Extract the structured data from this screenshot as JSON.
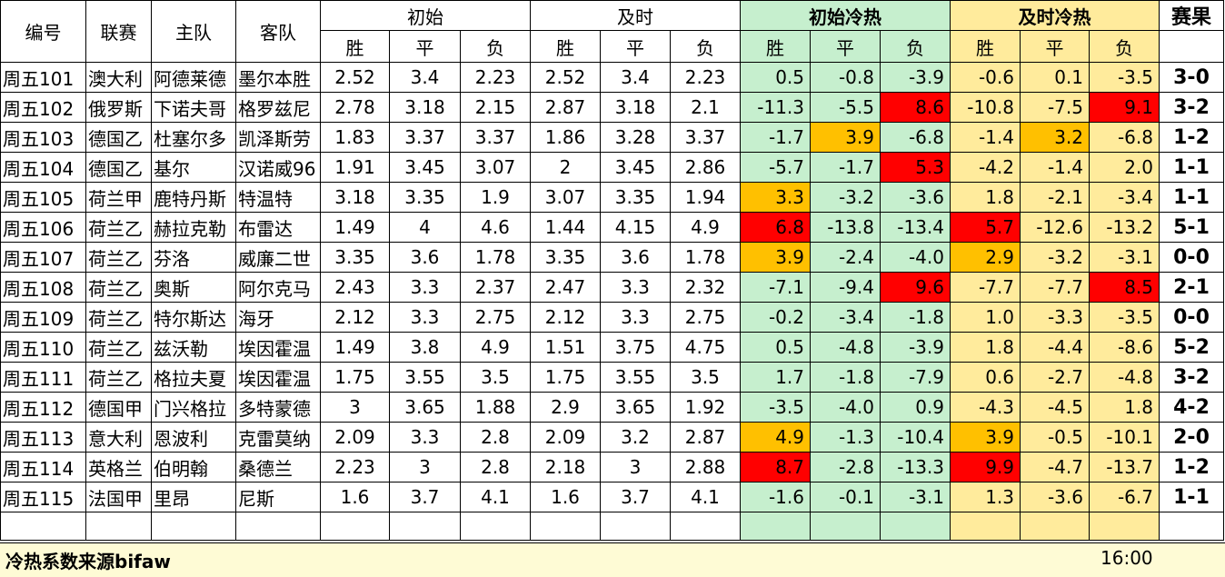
{
  "headers": {
    "id": "编号",
    "league": "联赛",
    "home": "主队",
    "away": "客队",
    "initial": "初始",
    "live": "及时",
    "initial_heat": "初始冷热",
    "live_heat": "及时冷热",
    "result": "赛果",
    "win": "胜",
    "draw": "平",
    "loss": "负"
  },
  "rows": [
    {
      "id": "周五101",
      "league": "澳大利",
      "home": "阿德莱德",
      "away": "墨尔本胜",
      "i": [
        "2.52",
        "3.4",
        "2.23"
      ],
      "l": [
        "2.52",
        "3.4",
        "2.23"
      ],
      "ih": [
        "0.5",
        "-0.8",
        "-3.9"
      ],
      "lh": [
        "-0.6",
        "0.1",
        "-3.5"
      ],
      "r": "3-0",
      "ihc": [
        "g",
        "g",
        "g"
      ],
      "lhc": [
        "y",
        "y",
        "y"
      ]
    },
    {
      "id": "周五102",
      "league": "俄罗斯",
      "home": "下诺夫哥",
      "away": "格罗兹尼",
      "i": [
        "2.78",
        "3.18",
        "2.15"
      ],
      "l": [
        "2.87",
        "3.18",
        "2.1"
      ],
      "ih": [
        "-11.3",
        "-5.5",
        "8.6"
      ],
      "lh": [
        "-10.8",
        "-7.5",
        "9.1"
      ],
      "r": "3-2",
      "ihc": [
        "g",
        "g",
        "rd"
      ],
      "lhc": [
        "y",
        "y",
        "rd"
      ]
    },
    {
      "id": "周五103",
      "league": "德国乙",
      "home": "杜塞尔多",
      "away": "凯泽斯劳",
      "i": [
        "1.83",
        "3.37",
        "3.37"
      ],
      "l": [
        "1.86",
        "3.28",
        "3.37"
      ],
      "ih": [
        "-1.7",
        "3.9",
        "-6.8"
      ],
      "lh": [
        "-1.4",
        "3.2",
        "-6.8"
      ],
      "r": "1-2",
      "ihc": [
        "g",
        "or",
        "g"
      ],
      "lhc": [
        "y",
        "or",
        "y"
      ]
    },
    {
      "id": "周五104",
      "league": "德国乙",
      "home": "基尔",
      "away": "汉诺威96",
      "i": [
        "1.91",
        "3.45",
        "3.07"
      ],
      "l": [
        "2",
        "3.45",
        "2.86"
      ],
      "ih": [
        "-5.7",
        "-1.7",
        "5.3"
      ],
      "lh": [
        "-4.2",
        "-1.4",
        "2.0"
      ],
      "r": "1-1",
      "ihc": [
        "g",
        "g",
        "rd"
      ],
      "lhc": [
        "y",
        "y",
        "y"
      ]
    },
    {
      "id": "周五105",
      "league": "荷兰甲",
      "home": "鹿特丹斯",
      "away": "特温特",
      "i": [
        "3.18",
        "3.35",
        "1.9"
      ],
      "l": [
        "3.07",
        "3.35",
        "1.94"
      ],
      "ih": [
        "3.3",
        "-3.2",
        "-3.6"
      ],
      "lh": [
        "1.8",
        "-2.1",
        "-3.4"
      ],
      "r": "1-1",
      "ihc": [
        "or",
        "g",
        "g"
      ],
      "lhc": [
        "y",
        "y",
        "y"
      ]
    },
    {
      "id": "周五106",
      "league": "荷兰乙",
      "home": "赫拉克勒",
      "away": "布雷达",
      "i": [
        "1.49",
        "4",
        "4.6"
      ],
      "l": [
        "1.44",
        "4.15",
        "4.9"
      ],
      "ih": [
        "6.8",
        "-13.8",
        "-13.4"
      ],
      "lh": [
        "5.7",
        "-12.6",
        "-13.2"
      ],
      "r": "5-1",
      "ihc": [
        "rd",
        "g",
        "g"
      ],
      "lhc": [
        "rd",
        "y",
        "y"
      ]
    },
    {
      "id": "周五107",
      "league": "荷兰乙",
      "home": "芬洛",
      "away": "威廉二世",
      "i": [
        "3.35",
        "3.6",
        "1.78"
      ],
      "l": [
        "3.35",
        "3.6",
        "1.78"
      ],
      "ih": [
        "3.9",
        "-2.4",
        "-4.0"
      ],
      "lh": [
        "2.9",
        "-3.2",
        "-3.1"
      ],
      "r": "0-0",
      "ihc": [
        "or",
        "g",
        "g"
      ],
      "lhc": [
        "or",
        "y",
        "y"
      ]
    },
    {
      "id": "周五108",
      "league": "荷兰乙",
      "home": "奥斯",
      "away": "阿尔克马",
      "i": [
        "2.43",
        "3.3",
        "2.37"
      ],
      "l": [
        "2.47",
        "3.3",
        "2.32"
      ],
      "ih": [
        "-7.1",
        "-9.4",
        "9.6"
      ],
      "lh": [
        "-7.7",
        "-7.7",
        "8.5"
      ],
      "r": "2-1",
      "ihc": [
        "g",
        "g",
        "rd"
      ],
      "lhc": [
        "y",
        "y",
        "rd"
      ]
    },
    {
      "id": "周五109",
      "league": "荷兰乙",
      "home": "特尔斯达",
      "away": "海牙",
      "i": [
        "2.12",
        "3.3",
        "2.75"
      ],
      "l": [
        "2.12",
        "3.3",
        "2.75"
      ],
      "ih": [
        "-0.2",
        "-3.4",
        "-1.8"
      ],
      "lh": [
        "1.0",
        "-3.3",
        "-3.5"
      ],
      "r": "0-0",
      "ihc": [
        "g",
        "g",
        "g"
      ],
      "lhc": [
        "y",
        "y",
        "y"
      ]
    },
    {
      "id": "周五110",
      "league": "荷兰乙",
      "home": "兹沃勒",
      "away": "埃因霍温",
      "i": [
        "1.49",
        "3.8",
        "4.9"
      ],
      "l": [
        "1.51",
        "3.75",
        "4.75"
      ],
      "ih": [
        "0.5",
        "-4.8",
        "-3.9"
      ],
      "lh": [
        "1.8",
        "-4.4",
        "-8.6"
      ],
      "r": "5-2",
      "ihc": [
        "g",
        "g",
        "g"
      ],
      "lhc": [
        "y",
        "y",
        "y"
      ]
    },
    {
      "id": "周五111",
      "league": "荷兰乙",
      "home": "格拉夫夏",
      "away": "埃因霍温",
      "i": [
        "1.75",
        "3.55",
        "3.5"
      ],
      "l": [
        "1.75",
        "3.55",
        "3.5"
      ],
      "ih": [
        "1.7",
        "-1.8",
        "-7.9"
      ],
      "lh": [
        "0.6",
        "-2.7",
        "-4.8"
      ],
      "r": "3-2",
      "ihc": [
        "g",
        "g",
        "g"
      ],
      "lhc": [
        "y",
        "y",
        "y"
      ]
    },
    {
      "id": "周五112",
      "league": "德国甲",
      "home": "门兴格拉",
      "away": "多特蒙德",
      "i": [
        "3",
        "3.65",
        "1.88"
      ],
      "l": [
        "2.9",
        "3.65",
        "1.92"
      ],
      "ih": [
        "-3.5",
        "-4.0",
        "0.9"
      ],
      "lh": [
        "-4.3",
        "-4.5",
        "1.8"
      ],
      "r": "4-2",
      "ihc": [
        "g",
        "g",
        "g"
      ],
      "lhc": [
        "y",
        "y",
        "y"
      ]
    },
    {
      "id": "周五113",
      "league": "意大利",
      "home": "恩波利",
      "away": "克雷莫纳",
      "i": [
        "2.09",
        "3.3",
        "2.8"
      ],
      "l": [
        "2.09",
        "3.2",
        "2.87"
      ],
      "ih": [
        "4.9",
        "-1.3",
        "-10.4"
      ],
      "lh": [
        "3.9",
        "-0.5",
        "-10.1"
      ],
      "r": "2-0",
      "ihc": [
        "or",
        "g",
        "g"
      ],
      "lhc": [
        "or",
        "y",
        "y"
      ]
    },
    {
      "id": "周五114",
      "league": "英格兰",
      "home": "伯明翰",
      "away": "桑德兰",
      "i": [
        "2.23",
        "3",
        "2.8"
      ],
      "l": [
        "2.18",
        "3",
        "2.88"
      ],
      "ih": [
        "8.7",
        "-2.8",
        "-13.3"
      ],
      "lh": [
        "9.9",
        "-4.7",
        "-13.7"
      ],
      "r": "1-2",
      "ihc": [
        "rd",
        "g",
        "g"
      ],
      "lhc": [
        "rd",
        "y",
        "y"
      ]
    },
    {
      "id": "周五115",
      "league": "法国甲",
      "home": "里昂",
      "away": "尼斯",
      "i": [
        "1.6",
        "3.7",
        "4.1"
      ],
      "l": [
        "1.6",
        "3.7",
        "4.1"
      ],
      "ih": [
        "-1.6",
        "-0.1",
        "-3.1"
      ],
      "lh": [
        "1.3",
        "-3.6",
        "-6.7"
      ],
      "r": "1-1",
      "ihc": [
        "g",
        "g",
        "g"
      ],
      "lhc": [
        "y",
        "y",
        "y"
      ]
    }
  ],
  "footer": {
    "source": "冷热系数来源bifaw",
    "time": "16:00"
  },
  "colors": {
    "green": "#c6efce",
    "yellow": "#ffeb9c",
    "orange": "#ffc000",
    "red": "#ff0000"
  }
}
